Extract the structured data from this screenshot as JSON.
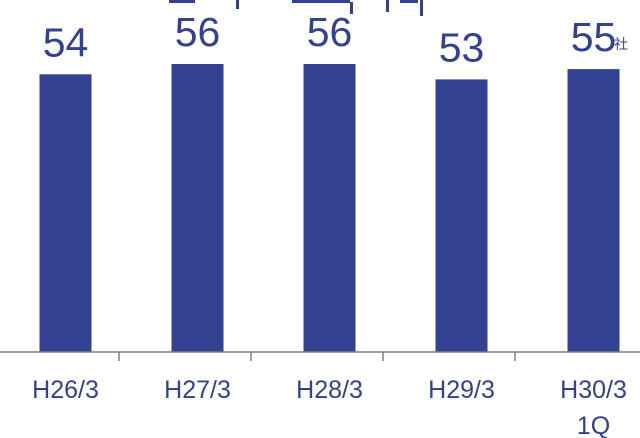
{
  "chart_data": {
    "type": "bar",
    "categories": [
      "H26/3",
      "H27/3",
      "H28/3",
      "H29/3",
      "H30/3\n1Q"
    ],
    "values": [
      54,
      56,
      56,
      53,
      55
    ],
    "unit": "社",
    "ylim": [
      0,
      56
    ],
    "grid": false,
    "title": "",
    "xlabel": "",
    "ylabel": ""
  },
  "colors": {
    "bar": "#324191",
    "text": "#324191",
    "axis": "#7f7f7f"
  }
}
